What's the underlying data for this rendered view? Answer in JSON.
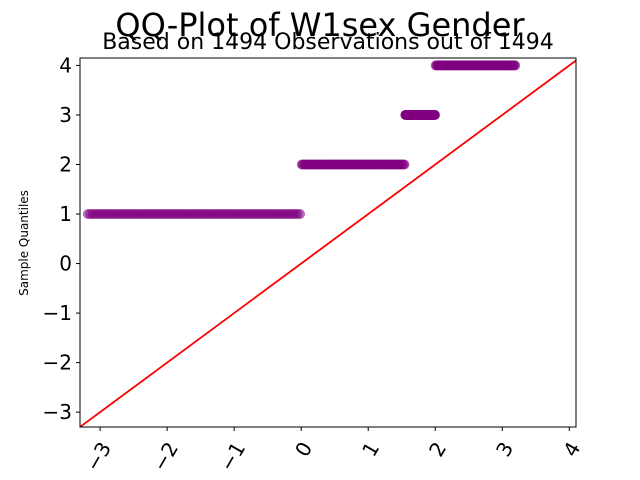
{
  "chart_data": {
    "type": "scatter",
    "title": "QQ-Plot of W1sex Gender",
    "subtitle": "Based on 1494 Observations out of 1494",
    "xlabel": "",
    "ylabel": "Sample Quantiles",
    "xlim": [
      -3.3,
      4.1
    ],
    "ylim": [
      -3.3,
      4.15
    ],
    "xticks": [
      -3,
      -2,
      -1,
      0,
      1,
      2,
      3,
      4
    ],
    "yticks": [
      -3,
      -2,
      -1,
      0,
      1,
      2,
      3,
      4
    ],
    "xtick_labels": [
      "−3",
      "−2",
      "−1",
      "0",
      "1",
      "2",
      "3",
      "4"
    ],
    "ytick_labels": [
      "−3",
      "−2",
      "−1",
      "0",
      "1",
      "2",
      "3",
      "4"
    ],
    "grid": false,
    "legend": null,
    "series": [
      {
        "marker_color": "#800080",
        "points": [
          {
            "y": 1,
            "x_from": -3.2,
            "x_to": 0.0
          },
          {
            "y": 2,
            "x_from": 0.0,
            "x_to": 1.55
          },
          {
            "y": 3,
            "x_from": 1.55,
            "x_to": 2.0
          },
          {
            "y": 4,
            "x_from": 2.0,
            "x_to": 3.2
          }
        ]
      }
    ],
    "reference_line": {
      "slope": 1,
      "intercept": 0,
      "color": "#ff0000"
    }
  }
}
